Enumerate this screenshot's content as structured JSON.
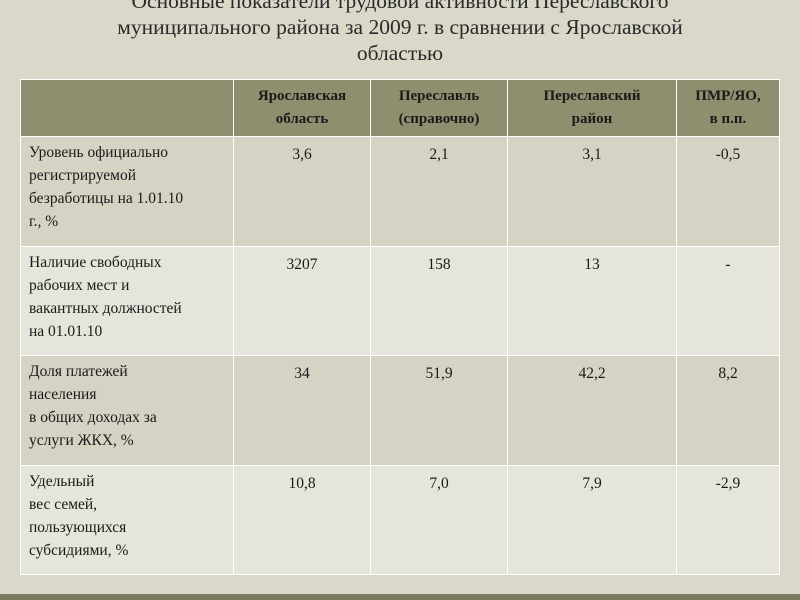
{
  "slide": {
    "title_lines": [
      "Основные показатели трудовой активности Переславского",
      "муниципального района за 2009 г. в сравнении с Ярославской",
      "областью"
    ]
  },
  "table": {
    "headers": [
      "",
      "Ярославская\nобласть",
      "Переславль\n(справочно)",
      "Переславский\nрайон",
      "ПМР/ЯО,\nв п.п."
    ],
    "rows": [
      {
        "label": "Уровень официально\nрегистрируемой\nбезработицы на 1.01.10\nг., %",
        "values": [
          "3,6",
          "2,1",
          "3,1",
          "-0,5"
        ]
      },
      {
        "label": "Наличие свободных\nрабочих мест и\nвакантных должностей\nна 01.01.10",
        "values": [
          "3207",
          "158",
          "13",
          "-"
        ]
      },
      {
        "label": "Доля платежей\nнаселения\nв общих доходах  за\nуслуги ЖКХ, %",
        "values": [
          "34",
          "51,9",
          "42,2",
          "8,2"
        ]
      },
      {
        "label": "Удельный\nвес семей,\nпользующихся\nсубсидиями, %",
        "values": [
          "10,8",
          "7,0",
          "7,9",
          "-2,9"
        ]
      }
    ]
  }
}
